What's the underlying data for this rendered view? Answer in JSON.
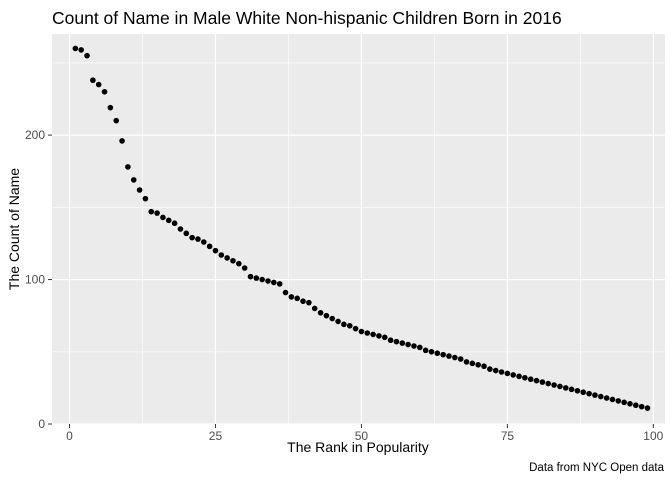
{
  "chart_data": {
    "type": "scatter",
    "title": "Count of Name in Male White Non-hispanic Children Born in 2016",
    "xlabel": "The Rank in Popularity",
    "ylabel": "The Count of Name",
    "caption": "Data from NYC Open data",
    "xlim": [
      -3,
      102
    ],
    "ylim": [
      0,
      270
    ],
    "x_ticks": [
      0,
      25,
      50,
      75,
      100
    ],
    "y_ticks": [
      0,
      100,
      200
    ],
    "x_tick_labels": [
      "0",
      "25",
      "50",
      "75",
      "100"
    ],
    "y_tick_labels": [
      "0",
      "100",
      "200"
    ],
    "grid": true,
    "panel_background": "#ebebeb",
    "grid_color": "#ffffff",
    "point_color": "#000000",
    "x": [
      1,
      2,
      3,
      4,
      5,
      6,
      7,
      8,
      9,
      10,
      11,
      12,
      13,
      14,
      15,
      16,
      17,
      18,
      19,
      20,
      21,
      22,
      23,
      24,
      25,
      26,
      27,
      28,
      29,
      30,
      31,
      32,
      33,
      34,
      35,
      36,
      37,
      38,
      39,
      40,
      41,
      42,
      43,
      44,
      45,
      46,
      47,
      48,
      49,
      50,
      51,
      52,
      53,
      54,
      55,
      56,
      57,
      58,
      59,
      60,
      61,
      62,
      63,
      64,
      65,
      66,
      67,
      68,
      69,
      70,
      71,
      72,
      73,
      74,
      75,
      76,
      77,
      78,
      79,
      80,
      81,
      82,
      83,
      84,
      85,
      86,
      87,
      88,
      89,
      90,
      91,
      92,
      93,
      94,
      95,
      96,
      97,
      98,
      99
    ],
    "y": [
      260,
      259,
      255,
      238,
      235,
      230,
      219,
      210,
      196,
      178,
      169,
      162,
      156,
      147,
      146,
      143,
      141,
      139,
      135,
      132,
      129,
      128,
      126,
      123,
      120,
      117,
      115,
      113,
      111,
      108,
      102,
      101,
      100,
      99,
      98,
      97,
      91,
      88,
      87,
      85,
      84,
      80,
      77,
      75,
      73,
      71,
      69,
      68,
      66,
      64,
      63,
      62,
      61,
      60,
      58,
      57,
      56,
      55,
      54,
      53,
      51,
      50,
      49,
      48,
      47,
      46,
      45,
      43,
      42,
      41,
      40,
      38,
      37,
      36,
      35,
      34,
      33,
      32,
      31,
      30,
      29,
      28,
      27,
      26,
      25,
      24,
      23,
      22,
      21,
      20,
      19,
      18,
      17,
      16,
      15,
      14,
      13,
      12,
      11
    ]
  }
}
